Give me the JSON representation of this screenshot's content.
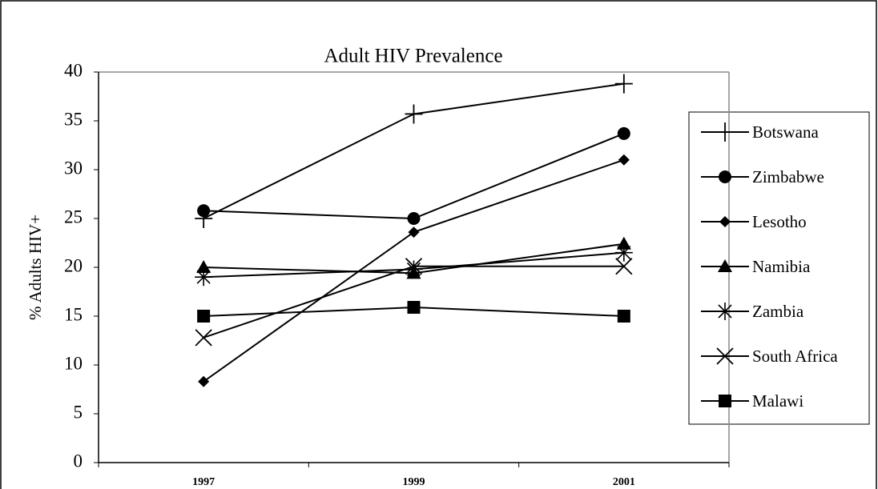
{
  "chart_data": {
    "type": "line",
    "title": "Adult HIV Prevalence",
    "y_label": "% Adults HIV+",
    "categories": [
      "1997",
      "1999",
      "2001"
    ],
    "ylim": [
      0,
      40
    ],
    "yticks": [
      0,
      5,
      10,
      15,
      20,
      25,
      30,
      35,
      40
    ],
    "grid": false,
    "legend": "right",
    "color": "#000000",
    "series": [
      {
        "name": "Botswana",
        "marker": "plus",
        "values": [
          25.0,
          35.7,
          38.8
        ]
      },
      {
        "name": "Zimbabwe",
        "marker": "circle",
        "values": [
          25.8,
          25.0,
          33.7
        ]
      },
      {
        "name": "Lesotho",
        "marker": "diamond",
        "values": [
          8.3,
          23.6,
          31.0
        ]
      },
      {
        "name": "Namibia",
        "marker": "triangle",
        "values": [
          20.0,
          19.4,
          22.4
        ]
      },
      {
        "name": "Zambia",
        "marker": "star",
        "values": [
          19.0,
          19.8,
          21.5
        ]
      },
      {
        "name": "South Africa",
        "marker": "cross",
        "values": [
          12.8,
          20.1,
          20.1
        ]
      },
      {
        "name": "Malawi",
        "marker": "square",
        "values": [
          15.0,
          15.9,
          15.0
        ]
      }
    ]
  }
}
